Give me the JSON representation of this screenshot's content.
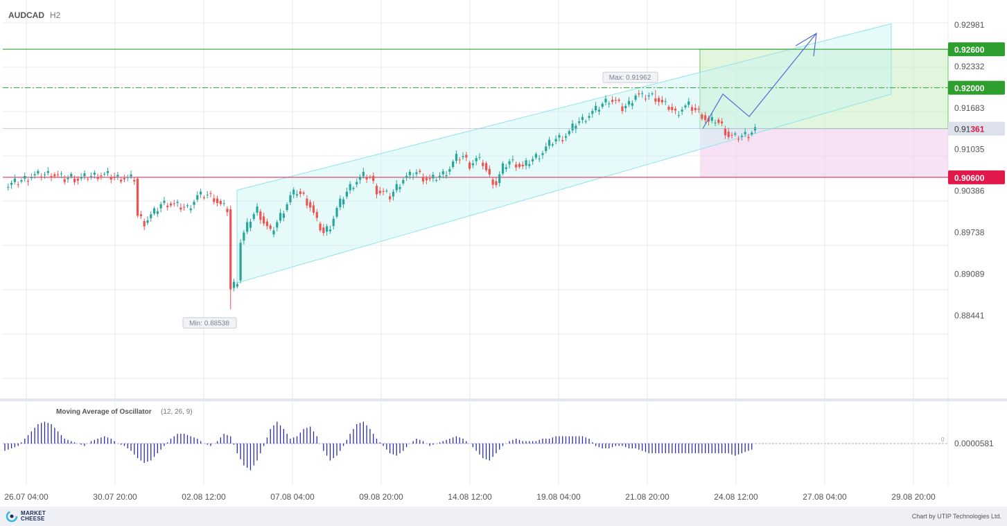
{
  "header": {
    "symbol": "AUDCAD",
    "timeframe": "H2"
  },
  "indicator": {
    "name": "Moving Average of Oscillator",
    "params": "(12, 26, 9)",
    "zero_label": "0",
    "last_value_label": "0.0000581"
  },
  "footer": {
    "logo_line1": "MARKET",
    "logo_line2": "CHEESE",
    "credit": "Chart by UTIP Technologies Ltd."
  },
  "colors": {
    "bull": "#26a69a",
    "bear": "#ef5350",
    "green_level": "#2e9e2e",
    "red_level": "#e0194a",
    "channel": "#8fe3ec",
    "histogram": "#2a2aa8"
  },
  "chart_data": {
    "type": "candlestick",
    "symbol": "AUDCAD",
    "timeframe": "H2",
    "ylim": [
      0.88,
      0.931
    ],
    "y_ticks": [
      "0.92981",
      "0.92332",
      "0.91683",
      "0.91035",
      "0.90386",
      "0.89738",
      "0.89089",
      "0.88441"
    ],
    "x_ticks": [
      "26.07 04:00",
      "30.07 20:00",
      "02.08 12:00",
      "07.08 04:00",
      "09.08 20:00",
      "14.08 12:00",
      "19.08 04:00",
      "21.08 20:00",
      "24.08 12:00",
      "27.08 04:00",
      "29.08 20:00"
    ],
    "close_path": [
      [
        0,
        0.9045
      ],
      [
        8,
        0.9062
      ],
      [
        14,
        0.9066
      ],
      [
        18,
        0.9057
      ],
      [
        20,
        0.9061
      ],
      [
        22,
        0.9057
      ],
      [
        25,
        0.9061
      ],
      [
        28,
        0.9064
      ],
      [
        31,
        0.9063
      ],
      [
        33,
        0.9059
      ],
      [
        35,
        0.906
      ],
      [
        37,
        0.9058
      ],
      [
        39,
        0.9058
      ],
      [
        40,
        0.9
      ],
      [
        42,
        0.899
      ],
      [
        45,
        0.9005
      ],
      [
        47,
        0.9018
      ],
      [
        49,
        0.902
      ],
      [
        52,
        0.9015
      ],
      [
        55,
        0.9012
      ],
      [
        58,
        0.903
      ],
      [
        61,
        0.9033
      ],
      [
        63,
        0.9028
      ],
      [
        65,
        0.9016
      ],
      [
        67,
        0.901
      ],
      [
        68,
        0.8885
      ],
      [
        70,
        0.89
      ],
      [
        71,
        0.896
      ],
      [
        74,
        0.8995
      ],
      [
        76,
        0.901
      ],
      [
        78,
        0.899
      ],
      [
        80,
        0.8973
      ],
      [
        82,
        0.899
      ],
      [
        84,
        0.901
      ],
      [
        86,
        0.903
      ],
      [
        88,
        0.9038
      ],
      [
        90,
        0.903
      ],
      [
        92,
        0.9015
      ],
      [
        94,
        0.899
      ],
      [
        96,
        0.8973
      ],
      [
        98,
        0.8985
      ],
      [
        100,
        0.901
      ],
      [
        102,
        0.903
      ],
      [
        104,
        0.9045
      ],
      [
        106,
        0.9055
      ],
      [
        108,
        0.9062
      ],
      [
        110,
        0.906
      ],
      [
        112,
        0.904
      ],
      [
        114,
        0.9035
      ],
      [
        116,
        0.903
      ],
      [
        118,
        0.9045
      ],
      [
        120,
        0.9058
      ],
      [
        122,
        0.9062
      ],
      [
        124,
        0.9068
      ],
      [
        126,
        0.906
      ],
      [
        128,
        0.9055
      ],
      [
        130,
        0.906
      ],
      [
        132,
        0.9065
      ],
      [
        134,
        0.9075
      ],
      [
        136,
        0.909
      ],
      [
        138,
        0.9093
      ],
      [
        140,
        0.908
      ],
      [
        142,
        0.9088
      ],
      [
        144,
        0.9082
      ],
      [
        146,
        0.906
      ],
      [
        148,
        0.905
      ],
      [
        150,
        0.9075
      ],
      [
        152,
        0.9085
      ],
      [
        154,
        0.9082
      ],
      [
        156,
        0.9075
      ],
      [
        158,
        0.9085
      ],
      [
        160,
        0.9092
      ],
      [
        162,
        0.91
      ],
      [
        164,
        0.9112
      ],
      [
        166,
        0.912
      ],
      [
        168,
        0.9123
      ],
      [
        170,
        0.913
      ],
      [
        172,
        0.9145
      ],
      [
        174,
        0.915
      ],
      [
        176,
        0.9158
      ],
      [
        178,
        0.9165
      ],
      [
        180,
        0.9175
      ],
      [
        182,
        0.9182
      ],
      [
        184,
        0.9178
      ],
      [
        186,
        0.9168
      ],
      [
        188,
        0.9175
      ],
      [
        190,
        0.919
      ],
      [
        192,
        0.9185
      ],
      [
        194,
        0.9188
      ],
      [
        196,
        0.9185
      ],
      [
        198,
        0.9175
      ],
      [
        200,
        0.917
      ],
      [
        202,
        0.916
      ],
      [
        204,
        0.9168
      ],
      [
        206,
        0.9172
      ],
      [
        208,
        0.9165
      ],
      [
        210,
        0.9158
      ],
      [
        212,
        0.9145
      ],
      [
        214,
        0.915
      ],
      [
        216,
        0.914
      ],
      [
        218,
        0.9125
      ],
      [
        220,
        0.9122
      ],
      [
        222,
        0.9125
      ],
      [
        224,
        0.9128
      ],
      [
        226,
        0.9136
      ]
    ],
    "low": {
      "label": "Min: 0.88538",
      "value": 0.88538,
      "bar": 68
    },
    "high": {
      "label": "Max: 0.91962",
      "value": 0.91962,
      "bar": 196
    },
    "current": {
      "value": 0.91361,
      "label_main": "0.91",
      "label_highlight": "361"
    },
    "levels": [
      {
        "name": "take-profit-2",
        "value": 0.926,
        "label": "0.92600",
        "style": "solid",
        "color": "#2e9e2e"
      },
      {
        "name": "take-profit-1",
        "value": 0.92,
        "label": "0.92000",
        "style": "dashdot",
        "color": "#2e9e2e"
      },
      {
        "name": "stop-loss",
        "value": 0.906,
        "label": "0.90600",
        "style": "solid",
        "color": "#e0194a"
      }
    ],
    "channel": {
      "start_bar": 70,
      "end_bar": 287,
      "upper_start": 0.904,
      "upper_end": 0.93,
      "lower_start": 0.8895,
      "lower_end": 0.919
    },
    "forecast_path": [
      [
        226,
        0.9136
      ],
      [
        235,
        0.919
      ],
      [
        243,
        0.9155
      ],
      [
        255,
        0.923
      ],
      [
        265,
        0.9285
      ]
    ],
    "forecast_zones": {
      "start_bar": 226,
      "end_bar": 300,
      "entry": 0.9136,
      "target": 0.926,
      "stop": 0.906
    },
    "oscillator": {
      "zero": 0,
      "values": [
        [
          0,
          -3
        ],
        [
          2,
          -2
        ],
        [
          4,
          -1
        ],
        [
          6,
          2
        ],
        [
          8,
          5
        ],
        [
          10,
          8
        ],
        [
          12,
          9
        ],
        [
          14,
          8
        ],
        [
          16,
          5
        ],
        [
          18,
          2
        ],
        [
          20,
          1
        ],
        [
          22,
          0
        ],
        [
          24,
          -1
        ],
        [
          26,
          1
        ],
        [
          28,
          2
        ],
        [
          30,
          3
        ],
        [
          32,
          2
        ],
        [
          34,
          0
        ],
        [
          36,
          -1
        ],
        [
          38,
          -3
        ],
        [
          40,
          -6
        ],
        [
          42,
          -8
        ],
        [
          44,
          -7
        ],
        [
          46,
          -4
        ],
        [
          48,
          -1
        ],
        [
          50,
          2
        ],
        [
          52,
          4
        ],
        [
          54,
          4
        ],
        [
          56,
          3
        ],
        [
          58,
          2
        ],
        [
          60,
          0
        ],
        [
          62,
          -1
        ],
        [
          64,
          1
        ],
        [
          66,
          4
        ],
        [
          68,
          3
        ],
        [
          70,
          -4
        ],
        [
          72,
          -9
        ],
        [
          74,
          -11
        ],
        [
          76,
          -7
        ],
        [
          78,
          -1
        ],
        [
          80,
          6
        ],
        [
          82,
          9
        ],
        [
          84,
          6
        ],
        [
          86,
          2
        ],
        [
          88,
          3
        ],
        [
          90,
          6
        ],
        [
          92,
          7
        ],
        [
          94,
          3
        ],
        [
          96,
          -3
        ],
        [
          98,
          -7
        ],
        [
          100,
          -5
        ],
        [
          102,
          -1
        ],
        [
          104,
          4
        ],
        [
          106,
          8
        ],
        [
          108,
          9
        ],
        [
          110,
          6
        ],
        [
          112,
          2
        ],
        [
          114,
          -1
        ],
        [
          116,
          -4
        ],
        [
          118,
          -5
        ],
        [
          120,
          -3
        ],
        [
          122,
          0
        ],
        [
          124,
          2
        ],
        [
          126,
          1
        ],
        [
          128,
          -1
        ],
        [
          130,
          0
        ],
        [
          132,
          1
        ],
        [
          134,
          2
        ],
        [
          136,
          3
        ],
        [
          138,
          2
        ],
        [
          140,
          0
        ],
        [
          142,
          -3
        ],
        [
          144,
          -6
        ],
        [
          146,
          -7
        ],
        [
          148,
          -4
        ],
        [
          150,
          -1
        ],
        [
          152,
          1
        ],
        [
          154,
          2
        ],
        [
          156,
          1
        ],
        [
          158,
          1
        ],
        [
          160,
          1
        ],
        [
          162,
          2
        ],
        [
          164,
          2
        ],
        [
          166,
          3
        ],
        [
          168,
          3
        ],
        [
          170,
          3
        ],
        [
          172,
          3
        ],
        [
          174,
          3
        ],
        [
          176,
          2
        ],
        [
          178,
          -1
        ],
        [
          180,
          -2
        ],
        [
          182,
          -2
        ],
        [
          184,
          -1
        ],
        [
          186,
          -1
        ],
        [
          188,
          -2
        ],
        [
          190,
          -2
        ],
        [
          192,
          -3
        ],
        [
          194,
          -4
        ],
        [
          196,
          -4
        ],
        [
          198,
          -4
        ],
        [
          200,
          -4
        ],
        [
          202,
          -4
        ],
        [
          204,
          -4
        ],
        [
          206,
          -4
        ],
        [
          208,
          -4
        ],
        [
          210,
          -4
        ],
        [
          212,
          -4
        ],
        [
          214,
          -4
        ],
        [
          216,
          -4
        ],
        [
          218,
          -4
        ],
        [
          220,
          -5
        ],
        [
          222,
          -4
        ],
        [
          224,
          -3
        ],
        [
          226,
          -2
        ]
      ]
    }
  }
}
